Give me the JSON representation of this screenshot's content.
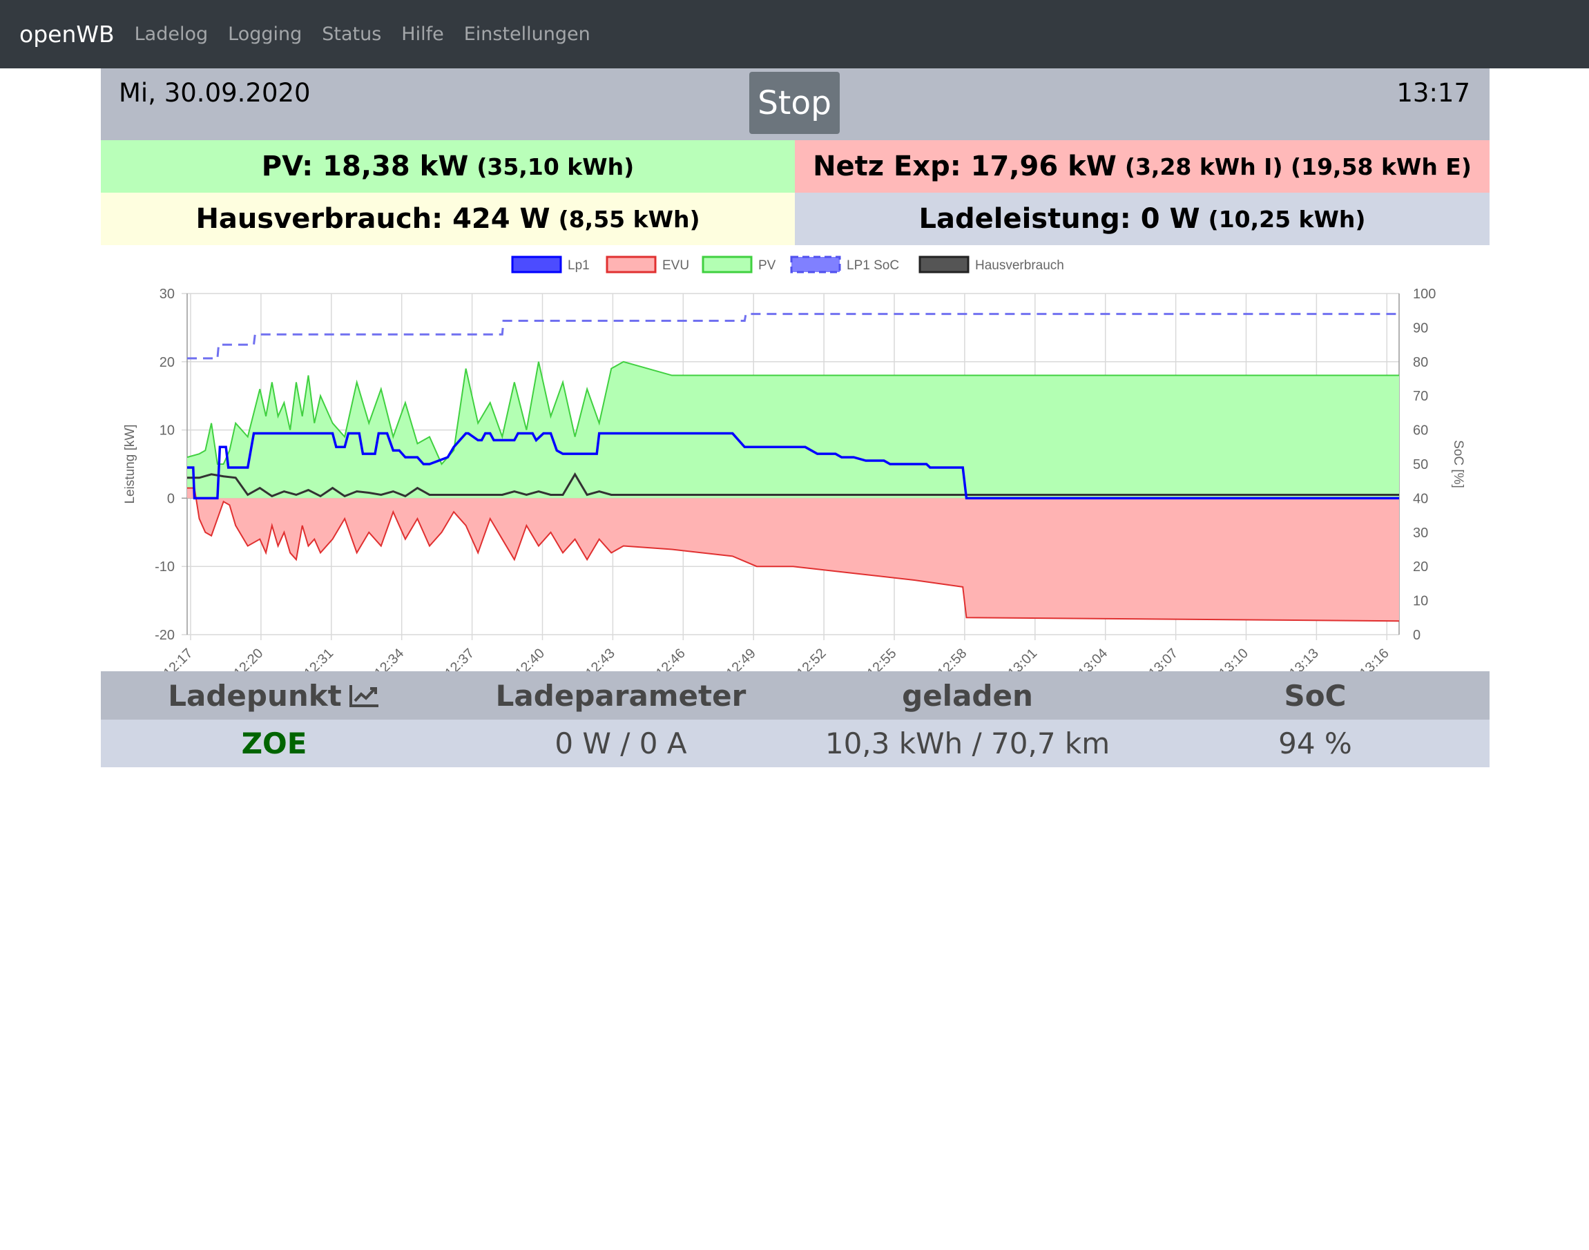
{
  "nav": {
    "brand": "openWB",
    "items": [
      "Ladelog",
      "Logging",
      "Status",
      "Hilfe",
      "Einstellungen"
    ]
  },
  "header": {
    "date": "Mi, 30.09.2020",
    "time": "13:17",
    "stop_label": "Stop"
  },
  "tiles": {
    "pv_main": "PV: 18,38 kW",
    "pv_sub": "(35,10 kWh)",
    "netz_main": "Netz Exp: 17,96 kW",
    "netz_sub": "(3,28 kWh I) (19,58 kWh E)",
    "haus_main": "Hausverbrauch: 424 W",
    "haus_sub": "(8,55 kWh)",
    "lade_main": "Ladeleistung: 0 W",
    "lade_sub": "(10,25 kWh)"
  },
  "colors": {
    "lp1": "#0000ff",
    "evu_fill": "#ffb3b3",
    "evu_line": "#e03030",
    "pv_fill": "#b3ffb3",
    "pv_line": "#40d040",
    "soc": "#7070f0",
    "haus": "#333333"
  },
  "chart_data": {
    "type": "line",
    "ylabel": "Leistung [kW]",
    "y2label": "SoC [%]",
    "ylim": [
      -20,
      30
    ],
    "y2lim": [
      0,
      100
    ],
    "yticks": [
      "30",
      "20",
      "10",
      "0",
      "-10",
      "-20"
    ],
    "y2ticks": [
      "100",
      "90",
      "80",
      "70",
      "60",
      "50",
      "40",
      "30",
      "20",
      "10",
      "0"
    ],
    "xticks": [
      "12:17",
      "12:20",
      "12:31",
      "12:34",
      "12:37",
      "12:40",
      "12:43",
      "12:46",
      "12:49",
      "12:52",
      "12:55",
      "12:58",
      "13:01",
      "13:04",
      "13:07",
      "13:10",
      "13:13",
      "13:16"
    ],
    "legend": [
      "Lp1",
      "EVU",
      "PV",
      "LP1 SoC",
      "Hausverbrauch"
    ],
    "legend_position": "top",
    "series": [
      {
        "name": "Lp1",
        "x": [
          0,
          0.5,
          0.6,
          2.5,
          2.7,
          3.2,
          3.4,
          5.0,
          5.5,
          12.0,
          12.3,
          13.0,
          13.3,
          14.2,
          14.5,
          15.5,
          15.8,
          16.5,
          17.0,
          17.5,
          18.0,
          19.0,
          19.5,
          20.0,
          21.5,
          22.0,
          23.0,
          23.2,
          24.0,
          24.3,
          24.6,
          25.0,
          25.3,
          27.0,
          27.3,
          28.5,
          28.8,
          29.4,
          30.0,
          30.5,
          31.0,
          33.8,
          34.0,
          34.5,
          45.0,
          46.0,
          51.0,
          52.0,
          53.5,
          54.0,
          55.0,
          56.0,
          57.5,
          58.0,
          61.0,
          61.3,
          64.0,
          64.3,
          100
        ],
        "y": [
          4.5,
          4.5,
          0,
          0,
          7.5,
          7.5,
          4.5,
          4.5,
          9.5,
          9.5,
          7.5,
          7.5,
          9.5,
          9.5,
          6.5,
          6.5,
          9.5,
          9.5,
          7.0,
          7.0,
          6.0,
          6.0,
          5.0,
          5.0,
          6.0,
          7.5,
          9.5,
          9.5,
          8.5,
          8.5,
          9.5,
          9.5,
          8.5,
          8.5,
          9.5,
          9.5,
          8.5,
          9.5,
          9.5,
          7.0,
          6.5,
          6.5,
          9.5,
          9.5,
          9.5,
          7.5,
          7.5,
          6.5,
          6.5,
          6.0,
          6.0,
          5.5,
          5.5,
          5.0,
          5.0,
          4.5,
          4.5,
          0,
          0
        ],
        "y_axis": "left"
      },
      {
        "name": "EVU",
        "x": [
          0,
          0.6,
          1.0,
          1.5,
          2.0,
          2.5,
          3.0,
          3.5,
          4.0,
          5.0,
          6.0,
          6.5,
          7.0,
          7.5,
          8.0,
          8.5,
          9.0,
          9.5,
          10.0,
          10.5,
          11.0,
          12.0,
          13.0,
          14.0,
          15.0,
          16.0,
          17.0,
          18.0,
          19.0,
          20.0,
          21.0,
          22.0,
          23.0,
          24.0,
          25.0,
          26.0,
          27.0,
          28.0,
          29.0,
          30.0,
          31.0,
          32.0,
          33.0,
          34.0,
          35.0,
          36.0,
          40.0,
          45.0,
          47.0,
          50.0,
          55.0,
          60.0,
          64.0,
          64.3,
          100
        ],
        "y": [
          1.5,
          1.5,
          -3,
          -5,
          -5.5,
          -3,
          -0.5,
          -1,
          -4,
          -7,
          -6,
          -8,
          -4,
          -7,
          -5,
          -8,
          -9,
          -4,
          -7,
          -6,
          -8,
          -6,
          -3,
          -8,
          -5,
          -7,
          -2,
          -6,
          -3,
          -7,
          -5,
          -2,
          -4,
          -8,
          -3,
          -6,
          -9,
          -4,
          -7,
          -5,
          -8,
          -6,
          -9,
          -6,
          -8,
          -7,
          -7.5,
          -8.5,
          -10,
          -10,
          -11,
          -12,
          -13,
          -17.5,
          -18
        ],
        "y_axis": "left"
      },
      {
        "name": "PV",
        "x": [
          0,
          1.0,
          1.5,
          2.0,
          2.5,
          3.0,
          3.5,
          4.0,
          5.0,
          6.0,
          6.5,
          7.0,
          7.5,
          8.0,
          8.5,
          9.0,
          9.5,
          10.0,
          10.5,
          11.0,
          12.0,
          13.0,
          14.0,
          15.0,
          16.0,
          17.0,
          18.0,
          19.0,
          20.0,
          21.0,
          22.0,
          23.0,
          24.0,
          25.0,
          26.0,
          27.0,
          28.0,
          29.0,
          30.0,
          31.0,
          32.0,
          33.0,
          34.0,
          35.0,
          36.0,
          40.0,
          45.0,
          50.0,
          55.0,
          60.0,
          65.0,
          70.0,
          75.0,
          80.0,
          85.0,
          90.0,
          95.0,
          100
        ],
        "y": [
          6,
          6.5,
          7,
          11,
          5,
          5,
          7,
          11,
          9,
          16,
          12,
          17,
          12,
          14,
          10,
          17,
          12,
          18,
          11,
          15,
          11,
          9,
          17,
          11,
          16,
          9,
          14,
          8,
          9,
          5,
          7,
          19,
          11,
          14,
          9,
          17,
          10,
          20,
          12,
          17,
          9,
          16,
          11,
          19,
          20,
          18,
          18,
          18,
          18,
          18,
          18,
          18,
          18,
          18,
          18,
          18,
          18,
          18
        ],
        "y_axis": "left"
      },
      {
        "name": "LP1 SoC",
        "x": [
          0,
          2.5,
          2.6,
          5.5,
          5.6,
          26.0,
          26.1,
          46.0,
          46.1,
          100
        ],
        "y": [
          81,
          81,
          85,
          85,
          88,
          88,
          92,
          92,
          94,
          94
        ],
        "y_axis": "right"
      },
      {
        "name": "Hausverbrauch",
        "x": [
          0,
          1.0,
          2.0,
          3.0,
          4.0,
          5.0,
          6.0,
          7.0,
          8.0,
          9.0,
          10.0,
          11.0,
          12.0,
          13.0,
          14.0,
          15.0,
          16.0,
          17.0,
          18.0,
          19.0,
          20.0,
          21.0,
          22.0,
          23.0,
          24.0,
          25.0,
          26.0,
          27.0,
          28.0,
          29.0,
          30.0,
          31.0,
          32.0,
          33.0,
          34.0,
          35.0,
          40.0,
          45.0,
          50.0,
          55.0,
          60.0,
          65.0,
          80.0,
          90.0,
          93.0,
          100
        ],
        "y": [
          3,
          3,
          3.5,
          3.2,
          3,
          0.5,
          1.5,
          0.3,
          1,
          0.5,
          1.2,
          0.3,
          1.5,
          0.3,
          1,
          0.8,
          0.5,
          1,
          0.3,
          1.5,
          0.5,
          0.5,
          0.5,
          0.5,
          0.5,
          0.5,
          0.5,
          1,
          0.5,
          1,
          0.5,
          0.5,
          3.5,
          0.5,
          1,
          0.5,
          0.5,
          0.5,
          0.5,
          0.5,
          0.5,
          0.5,
          0.5,
          0.5,
          0.5,
          0.5
        ],
        "y_axis": "left"
      }
    ]
  },
  "table": {
    "headers": [
      "Ladepunkt",
      "Ladeparameter",
      "geladen",
      "SoC"
    ],
    "row": {
      "name": "ZOE",
      "param": "0 W / 0 A",
      "charged": "10,3 kWh / 70,7 km",
      "soc": "94 %"
    }
  }
}
